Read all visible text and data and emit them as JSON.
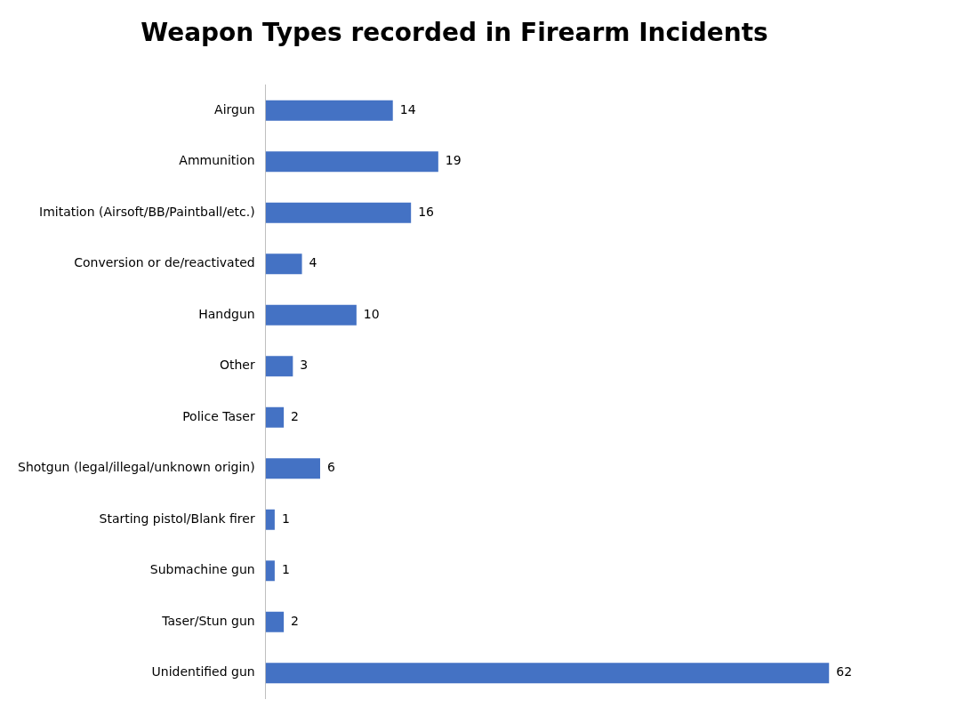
{
  "chart_data": {
    "type": "bar",
    "orientation": "horizontal",
    "title": "Weapon Types recorded in Firearm Incidents",
    "categories": [
      "Airgun",
      "Ammunition",
      "Imitation (Airsoft/BB/Paintball/etc.)",
      "Conversion or de/reactivated",
      "Handgun",
      "Other",
      "Police Taser",
      "Shotgun (legal/illegal/unknown origin)",
      "Starting pistol/Blank firer",
      "Submachine gun",
      "Taser/Stun gun",
      "Unidentified gun"
    ],
    "values": [
      14,
      19,
      16,
      4,
      10,
      3,
      2,
      6,
      1,
      1,
      2,
      62
    ],
    "color": "#4472c4",
    "data_labels": true,
    "grid": false,
    "legend": false
  }
}
